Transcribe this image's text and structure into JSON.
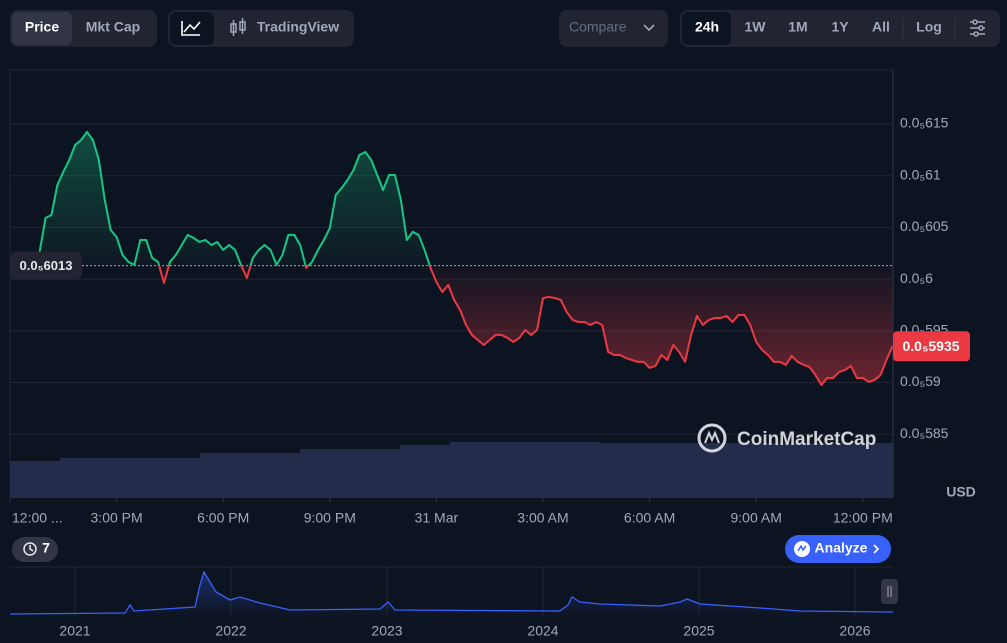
{
  "toolbar": {
    "price": "Price",
    "mkt_cap": "Mkt Cap",
    "tradingview": "TradingView",
    "compare": "Compare",
    "ranges": [
      "24h",
      "1W",
      "1M",
      "1Y",
      "All"
    ],
    "log": "Log"
  },
  "chart_data": {
    "type": "line",
    "x": [
      50,
      60,
      70,
      80,
      90,
      100,
      110,
      120,
      130,
      140,
      150,
      160,
      170,
      180,
      190,
      200,
      210,
      220,
      230,
      240,
      250,
      260,
      270,
      280,
      290,
      300,
      310,
      320,
      330,
      340,
      350,
      360,
      370,
      380,
      390,
      400,
      410,
      420,
      430,
      440,
      450,
      460,
      470,
      480,
      490,
      500,
      510,
      520,
      530,
      540,
      550,
      560,
      570,
      580,
      590,
      600,
      610,
      620,
      630,
      640,
      650,
      660,
      670,
      680,
      690,
      700,
      710,
      720,
      730,
      740,
      750,
      760,
      770,
      780,
      790,
      800,
      810,
      820,
      830,
      840,
      850,
      860,
      870,
      880,
      890,
      900,
      910,
      920,
      930,
      940,
      950,
      960,
      970,
      980,
      990,
      1000,
      1010,
      1020,
      1030,
      1040,
      1050,
      1060,
      1070,
      1080,
      1090,
      1100,
      1110,
      1120,
      1130,
      1140,
      1150,
      1160,
      1170,
      1180,
      1190,
      1200,
      1210,
      1220,
      1230,
      1240,
      1250,
      1260,
      1270,
      1280,
      1290,
      1300,
      1310,
      1320,
      1330,
      1340,
      1350,
      1360,
      1370,
      1380,
      1390,
      1400,
      1410,
      1420,
      1430,
      1440,
      1450,
      1460,
      1470,
      1480,
      1490
    ],
    "values": [
      6.0262e-06,
      6.0591e-06,
      6.062e-06,
      6.091e-06,
      6.1036e-06,
      6.1152e-06,
      6.1297e-06,
      6.1345e-06,
      6.1423e-06,
      6.1345e-06,
      6.1152e-06,
      6.0765e-06,
      6.0475e-06,
      6.0407e-06,
      6.0233e-06,
      6.0166e-06,
      6.0137e-06,
      6.0378e-06,
      6.0378e-06,
      6.0204e-06,
      6.0166e-06,
      5.9962e-06,
      6.0166e-06,
      6.0233e-06,
      6.033e-06,
      6.0427e-06,
      6.0398e-06,
      6.0359e-06,
      6.0378e-06,
      6.033e-06,
      6.0359e-06,
      6.0282e-06,
      6.033e-06,
      6.0282e-06,
      6.0137e-06,
      6.0011e-06,
      6.0204e-06,
      6.0282e-06,
      6.033e-06,
      6.0282e-06,
      6.0137e-06,
      6.0233e-06,
      6.0427e-06,
      6.0427e-06,
      6.033e-06,
      6.0108e-06,
      6.0166e-06,
      6.0282e-06,
      6.0378e-06,
      6.0494e-06,
      6.0813e-06,
      6.0881e-06,
      6.0958e-06,
      6.1055e-06,
      6.12e-06,
      6.1229e-06,
      6.1152e-06,
      6.1007e-06,
      6.0862e-06,
      6.1007e-06,
      6.1007e-06,
      6.0765e-06,
      6.0378e-06,
      6.0456e-06,
      6.0427e-06,
      6.0282e-06,
      6.0108e-06,
      5.9972e-06,
      5.9875e-06,
      5.9943e-06,
      5.9798e-06,
      5.9701e-06,
      5.9556e-06,
      5.946e-06,
      5.9411e-06,
      5.9363e-06,
      5.9411e-06,
      5.946e-06,
      5.946e-06,
      5.9431e-06,
      5.9392e-06,
      5.9431e-06,
      5.9508e-06,
      5.946e-06,
      5.9508e-06,
      5.9817e-06,
      5.9827e-06,
      5.9817e-06,
      5.9798e-06,
      5.9682e-06,
      5.9605e-06,
      5.9585e-06,
      5.9585e-06,
      5.9556e-06,
      5.9585e-06,
      5.9556e-06,
      5.9295e-06,
      5.9266e-06,
      5.9266e-06,
      5.9237e-06,
      5.9218e-06,
      5.9199e-06,
      5.9199e-06,
      5.9141e-06,
      5.916e-06,
      5.9266e-06,
      5.9218e-06,
      5.9363e-06,
      5.9295e-06,
      5.9199e-06,
      5.946e-06,
      5.9643e-06,
      5.9556e-06,
      5.9605e-06,
      5.9624e-06,
      5.9624e-06,
      5.9643e-06,
      5.9585e-06,
      5.9653e-06,
      5.9653e-06,
      5.9556e-06,
      5.9392e-06,
      5.9315e-06,
      5.9266e-06,
      5.9199e-06,
      5.9199e-06,
      5.917e-06,
      5.9257e-06,
      5.9199e-06,
      5.917e-06,
      5.915e-06,
      5.9073e-06,
      5.8976e-06,
      5.9044e-06,
      5.9044e-06,
      5.9102e-06,
      5.9121e-06,
      5.916e-06,
      5.9044e-06,
      5.9044e-06,
      5.9005e-06,
      5.9024e-06,
      5.9073e-06,
      5.9218e-06,
      5.935e-06
    ],
    "color_up": "#16c784",
    "color_down": "#ea3943",
    "reference": {
      "value": 6.013e-06,
      "label": "0.0₅6013"
    },
    "last_price": {
      "value": 5.935e-06,
      "label": "0.0₅5935"
    },
    "xlim": [
      0,
      1491
    ],
    "xticks": [
      {
        "value": 0,
        "label": "12:00 ..."
      },
      {
        "value": 180,
        "label": "3:00 PM"
      },
      {
        "value": 360,
        "label": "6:00 PM"
      },
      {
        "value": 540,
        "label": "9:00 PM"
      },
      {
        "value": 720,
        "label": "31 Mar"
      },
      {
        "value": 900,
        "label": "3:00 AM"
      },
      {
        "value": 1080,
        "label": "6:00 AM"
      },
      {
        "value": 1260,
        "label": "9:00 AM"
      },
      {
        "value": 1440,
        "label": "12:00 PM"
      }
    ],
    "ylim": [
      5.7883e-06,
      6.2022e-06
    ],
    "yticks": [
      {
        "value": 6.15e-06,
        "label": "0.0₅615"
      },
      {
        "value": 6.1e-06,
        "label": "0.0₅61"
      },
      {
        "value": 6.05e-06,
        "label": "0.0₅605"
      },
      {
        "value": 6e-06,
        "label": "0.0₅6"
      },
      {
        "value": 5.95e-06,
        "label": "0.0₅595"
      },
      {
        "value": 5.9e-06,
        "label": "0.0₅59"
      },
      {
        "value": 5.85e-06,
        "label": "0.0₅585"
      }
    ],
    "y_unit": "USD",
    "grid": true
  },
  "watermark": "CoinMarketCap",
  "history_count": "7",
  "analyze": "Analyze",
  "navigator": {
    "years": [
      "2021",
      "2022",
      "2023",
      "2024",
      "2025",
      "2026"
    ]
  }
}
